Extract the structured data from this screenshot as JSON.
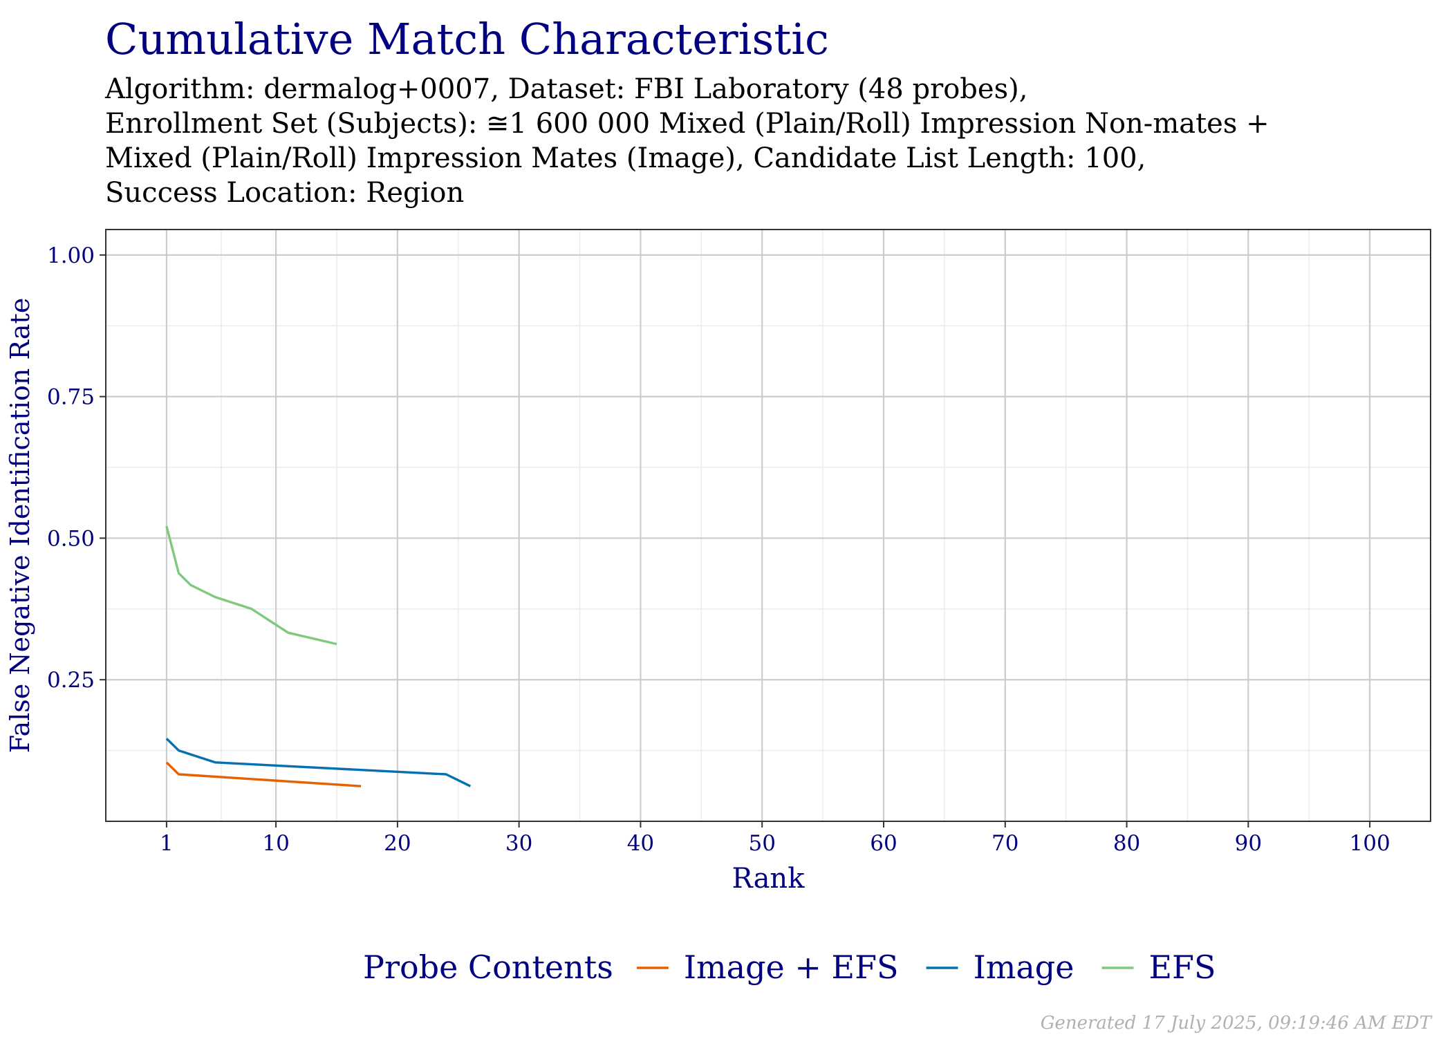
{
  "chart_data": {
    "type": "line",
    "title": "Cumulative Match Characteristic",
    "subtitle_lines": [
      "Algorithm: dermalog+0007, Dataset: FBI Laboratory (48 probes),",
      "Enrollment Set (Subjects): ≅1 600 000 Mixed (Plain/Roll) Impression Non-mates +",
      "Mixed (Plain/Roll) Impression Mates (Image), Candidate List Length: 100,",
      "Success Location: Region"
    ],
    "xlabel": "Rank",
    "ylabel": "False Negative Identification Rate",
    "xlim": [
      -4,
      105
    ],
    "ylim": [
      0,
      1.045
    ],
    "x_ticks": [
      1,
      10,
      20,
      30,
      40,
      50,
      60,
      70,
      80,
      90,
      100
    ],
    "y_ticks": [
      0.25,
      0.5,
      0.75,
      1.0
    ],
    "y_tick_labels": [
      "0.25",
      "0.50",
      "0.75",
      "1.00"
    ],
    "grid": true,
    "legend_position": "bottom",
    "legend_title": "Probe Contents",
    "series": [
      {
        "name": "Image + EFS",
        "color": "#e66101",
        "x": [
          1,
          2,
          17
        ],
        "y": [
          0.104,
          0.083,
          0.062
        ]
      },
      {
        "name": "Image",
        "color": "#0571b0",
        "x": [
          1,
          2,
          5,
          24,
          26
        ],
        "y": [
          0.146,
          0.125,
          0.104,
          0.083,
          0.062
        ]
      },
      {
        "name": "EFS",
        "color": "#7fc97f",
        "x": [
          1,
          2,
          3,
          5,
          8,
          11,
          15
        ],
        "y": [
          0.521,
          0.438,
          0.417,
          0.396,
          0.375,
          0.333,
          0.313
        ]
      }
    ]
  },
  "footer": "Generated 17 July 2025, 09:19:46 AM EDT"
}
